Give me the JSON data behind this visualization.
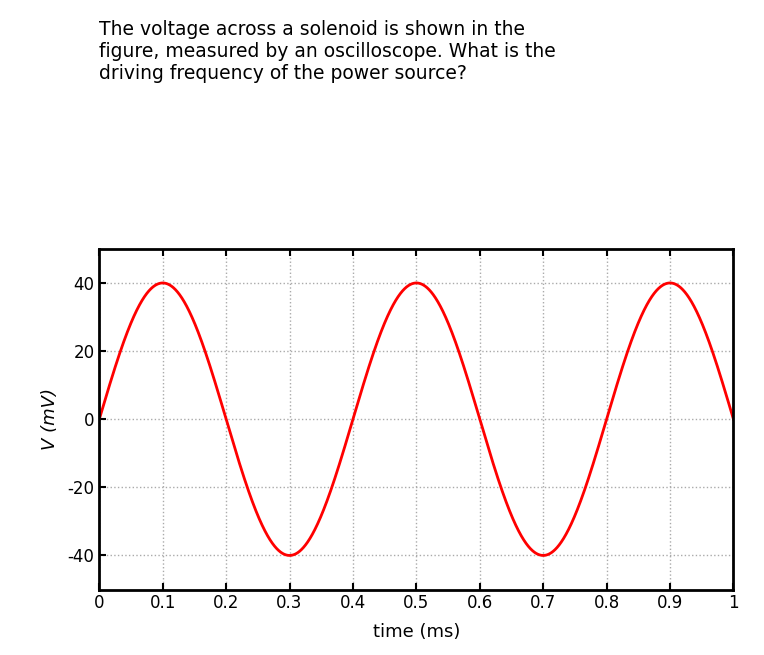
{
  "title": "The voltage across a solenoid is shown in the\nfigure, measured by an oscilloscope. What is the\ndriving frequency of the power source?",
  "title_fontsize": 13.5,
  "xlabel": "time (ms)",
  "ylabel": "V (mV)",
  "xlabel_fontsize": 13,
  "ylabel_fontsize": 13,
  "xlim": [
    0,
    1.0
  ],
  "ylim": [
    -50,
    50
  ],
  "xticks": [
    0,
    0.1,
    0.2,
    0.3,
    0.4,
    0.5,
    0.6,
    0.7,
    0.8,
    0.9,
    1.0
  ],
  "yticks": [
    -40,
    -20,
    0,
    20,
    40
  ],
  "amplitude": 40,
  "period_ms": 0.4,
  "line_color": "#ff0000",
  "line_width": 2.0,
  "background_color": "#ffffff",
  "plot_bg_color": "#ffffff",
  "grid_color": "#aaaaaa",
  "grid_style": ":",
  "grid_alpha": 1.0,
  "grid_linewidth": 1.0,
  "tick_fontsize": 12,
  "spine_color": "#000000",
  "spine_linewidth": 2.0,
  "fig_width": 7.64,
  "fig_height": 6.55,
  "dpi": 100
}
